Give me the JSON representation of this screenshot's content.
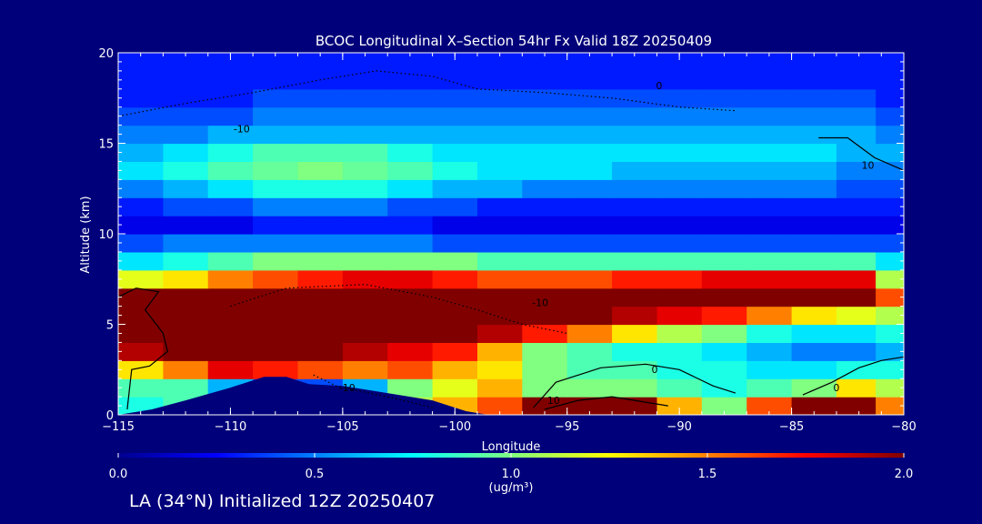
{
  "chart_data": {
    "type": "heatmap",
    "title": "BCOC Longitudinal X–Section 54hr  Fx Valid 18Z 20250409",
    "xlabel": "Longitude",
    "ylabel": "Altitude (km)",
    "xlim": [
      -115,
      -80
    ],
    "ylim": [
      0,
      20
    ],
    "x_ticks": [
      -115,
      -110,
      -105,
      -100,
      -95,
      -90,
      -85,
      -80
    ],
    "x_tick_labels": [
      "−115",
      "−110",
      "−105",
      "−100",
      "−95",
      "−90",
      "−85",
      "−80"
    ],
    "y_ticks": [
      0,
      5,
      10,
      15,
      20
    ],
    "y_tick_labels": [
      "0",
      "5",
      "10",
      "15",
      "20"
    ],
    "colorbar": {
      "min": 0.0,
      "max": 2.0,
      "ticks": [
        0.0,
        0.5,
        1.0,
        1.5,
        2.0
      ],
      "tick_labels": [
        "0.0",
        "0.5",
        "1.0",
        "1.5",
        "2.0"
      ],
      "label": "(ug/m³)",
      "colormap": [
        "#00008f",
        "#0000ff",
        "#0080ff",
        "#00ffff",
        "#80ff80",
        "#ffff00",
        "#ff8000",
        "#ff0000",
        "#800000"
      ]
    },
    "layers": [
      {
        "altitude_km": 0.5,
        "values": [
          0.8,
          0.9,
          0.6,
          0.4,
          0.4,
          0.6,
          1.1,
          1.4,
          1.6,
          2.0,
          2.0,
          2.0,
          1.4,
          1.0,
          1.6,
          2.0,
          2.0,
          1.5
        ]
      },
      {
        "altitude_km": 1.5,
        "values": [
          0.9,
          0.9,
          0.6,
          0.4,
          0.4,
          0.6,
          1.0,
          1.2,
          1.4,
          1.0,
          1.0,
          1.0,
          0.9,
          0.8,
          0.9,
          1.0,
          1.3,
          1.1
        ]
      },
      {
        "altitude_km": 2.5,
        "values": [
          1.3,
          1.5,
          1.8,
          1.7,
          1.6,
          1.5,
          1.6,
          1.4,
          1.3,
          1.0,
          0.9,
          0.9,
          0.8,
          0.8,
          0.7,
          0.7,
          0.8,
          0.8
        ]
      },
      {
        "altitude_km": 3.5,
        "values": [
          1.9,
          2.0,
          2.0,
          2.0,
          2.0,
          1.9,
          1.8,
          1.7,
          1.4,
          1.0,
          0.9,
          0.8,
          0.8,
          0.7,
          0.6,
          0.5,
          0.5,
          0.6
        ]
      },
      {
        "altitude_km": 4.5,
        "values": [
          2.0,
          2.0,
          2.0,
          2.0,
          2.0,
          2.0,
          2.0,
          2.0,
          1.9,
          1.7,
          1.5,
          1.3,
          1.1,
          1.0,
          0.8,
          0.7,
          0.7,
          0.8
        ]
      },
      {
        "altitude_km": 5.5,
        "values": [
          2.0,
          2.0,
          2.0,
          2.0,
          2.0,
          2.0,
          2.0,
          2.0,
          2.0,
          2.0,
          2.0,
          1.9,
          1.8,
          1.7,
          1.5,
          1.3,
          1.2,
          1.1
        ]
      },
      {
        "altitude_km": 6.5,
        "values": [
          2.0,
          2.0,
          2.0,
          2.0,
          2.0,
          2.0,
          2.0,
          2.0,
          2.0,
          2.0,
          2.0,
          2.0,
          2.0,
          2.0,
          2.0,
          2.0,
          2.0,
          1.6
        ]
      },
      {
        "altitude_km": 7.5,
        "values": [
          1.2,
          1.3,
          1.5,
          1.6,
          1.7,
          1.8,
          1.8,
          1.7,
          1.6,
          1.6,
          1.6,
          1.7,
          1.7,
          1.8,
          1.8,
          1.8,
          1.8,
          1.1
        ]
      },
      {
        "altitude_km": 8.5,
        "values": [
          0.7,
          0.8,
          0.9,
          1.0,
          1.0,
          1.0,
          1.0,
          1.0,
          0.9,
          0.9,
          0.9,
          0.9,
          0.9,
          0.9,
          0.9,
          0.9,
          0.9,
          0.7
        ]
      },
      {
        "altitude_km": 9.5,
        "values": [
          0.4,
          0.5,
          0.5,
          0.5,
          0.5,
          0.5,
          0.5,
          0.4,
          0.4,
          0.4,
          0.4,
          0.4,
          0.4,
          0.4,
          0.4,
          0.4,
          0.4,
          0.4
        ]
      },
      {
        "altitude_km": 10.5,
        "values": [
          0.2,
          0.2,
          0.2,
          0.3,
          0.3,
          0.3,
          0.3,
          0.2,
          0.2,
          0.2,
          0.2,
          0.2,
          0.2,
          0.2,
          0.2,
          0.2,
          0.2,
          0.2
        ]
      },
      {
        "altitude_km": 11.5,
        "values": [
          0.3,
          0.4,
          0.4,
          0.5,
          0.5,
          0.5,
          0.4,
          0.4,
          0.3,
          0.3,
          0.3,
          0.3,
          0.3,
          0.3,
          0.3,
          0.3,
          0.3,
          0.3
        ]
      },
      {
        "altitude_km": 12.5,
        "values": [
          0.5,
          0.6,
          0.7,
          0.8,
          0.8,
          0.8,
          0.7,
          0.6,
          0.6,
          0.5,
          0.5,
          0.5,
          0.5,
          0.5,
          0.5,
          0.5,
          0.4,
          0.4
        ]
      },
      {
        "altitude_km": 13.5,
        "values": [
          0.7,
          0.8,
          0.9,
          0.95,
          1.0,
          0.95,
          0.9,
          0.8,
          0.7,
          0.7,
          0.7,
          0.6,
          0.6,
          0.6,
          0.6,
          0.6,
          0.5,
          0.5
        ]
      },
      {
        "altitude_km": 14.5,
        "values": [
          0.6,
          0.7,
          0.8,
          0.9,
          0.9,
          0.9,
          0.8,
          0.7,
          0.7,
          0.7,
          0.7,
          0.7,
          0.7,
          0.7,
          0.7,
          0.7,
          0.6,
          0.6
        ]
      },
      {
        "altitude_km": 15.5,
        "values": [
          0.5,
          0.5,
          0.6,
          0.6,
          0.6,
          0.6,
          0.6,
          0.6,
          0.6,
          0.6,
          0.6,
          0.6,
          0.6,
          0.6,
          0.6,
          0.6,
          0.6,
          0.5
        ]
      },
      {
        "altitude_km": 16.5,
        "values": [
          0.4,
          0.4,
          0.4,
          0.5,
          0.5,
          0.5,
          0.5,
          0.5,
          0.5,
          0.5,
          0.5,
          0.5,
          0.5,
          0.5,
          0.5,
          0.5,
          0.5,
          0.4
        ]
      },
      {
        "altitude_km": 17.5,
        "values": [
          0.3,
          0.3,
          0.3,
          0.4,
          0.4,
          0.4,
          0.4,
          0.4,
          0.4,
          0.4,
          0.4,
          0.4,
          0.4,
          0.4,
          0.4,
          0.4,
          0.4,
          0.3
        ]
      },
      {
        "altitude_km": 18.5,
        "values": [
          0.3,
          0.3,
          0.3,
          0.3,
          0.3,
          0.3,
          0.3,
          0.3,
          0.3,
          0.3,
          0.3,
          0.3,
          0.3,
          0.3,
          0.3,
          0.3,
          0.3,
          0.3
        ]
      },
      {
        "altitude_km": 19.5,
        "values": [
          0.3,
          0.3,
          0.3,
          0.3,
          0.3,
          0.3,
          0.3,
          0.3,
          0.3,
          0.3,
          0.3,
          0.3,
          0.3,
          0.3,
          0.3,
          0.3,
          0.3,
          0.3
        ]
      }
    ],
    "layer_longitudes": [
      -114.0,
      -112.0,
      -110.0,
      -108.0,
      -106.0,
      -104.0,
      -102.0,
      -100.0,
      -98.0,
      -96.0,
      -94.0,
      -92.0,
      -90.0,
      -88.0,
      -86.0,
      -84.0,
      -82.0,
      -80.5
    ],
    "terrain": {
      "color": "#00007a",
      "points": [
        [
          -115,
          0
        ],
        [
          -113.5,
          0.3
        ],
        [
          -112,
          0.8
        ],
        [
          -110,
          1.5
        ],
        [
          -108.5,
          2.1
        ],
        [
          -107.5,
          2.1
        ],
        [
          -106.5,
          1.7
        ],
        [
          -105,
          1.6
        ],
        [
          -103,
          1.2
        ],
        [
          -101,
          0.8
        ],
        [
          -99.5,
          0.2
        ],
        [
          -98.5,
          0
        ],
        [
          -80,
          0
        ]
      ]
    },
    "contours": [
      {
        "label": "0",
        "style": "solid",
        "label_at": [
          -90.9,
          18.0
        ],
        "points": [
          [
            -114.6,
            0.3
          ],
          [
            -114.4,
            2.5
          ],
          [
            -113.6,
            2.7
          ],
          [
            -112.8,
            3.5
          ],
          [
            -113.0,
            4.5
          ],
          [
            -113.8,
            5.8
          ],
          [
            -113.2,
            6.8
          ],
          [
            -114.2,
            7.0
          ],
          [
            -115,
            6.5
          ]
        ]
      },
      {
        "label": "-10",
        "style": "dotted",
        "label_at": [
          -109.5,
          15.6
        ],
        "points": [
          [
            -115,
            16.5
          ],
          [
            -112,
            17.2
          ],
          [
            -109,
            17.8
          ],
          [
            -106,
            18.5
          ],
          [
            -103.5,
            19.0
          ],
          [
            -101,
            18.7
          ],
          [
            -99,
            18.0
          ],
          [
            -96,
            17.8
          ],
          [
            -93,
            17.5
          ],
          [
            -90,
            17.0
          ],
          [
            -87.5,
            16.8
          ]
        ]
      },
      {
        "label": "-10",
        "style": "dotted",
        "label_at": [
          -96.2,
          6.0
        ],
        "points": [
          [
            -110,
            6.0
          ],
          [
            -107.5,
            7.0
          ],
          [
            -104,
            7.2
          ],
          [
            -101,
            6.5
          ],
          [
            -99,
            5.8
          ],
          [
            -97,
            5.0
          ],
          [
            -95,
            4.5
          ]
        ]
      },
      {
        "label": "-10",
        "style": "dotted",
        "label_at": [
          -104.8,
          1.3
        ],
        "points": [
          [
            -106.3,
            2.2
          ],
          [
            -105.3,
            1.6
          ],
          [
            -103.8,
            1.2
          ],
          [
            -102.3,
            0.8
          ],
          [
            -101.0,
            0.4
          ]
        ]
      },
      {
        "label": "0",
        "style": "solid",
        "label_at": [
          -91.1,
          2.3
        ],
        "points": [
          [
            -96.5,
            0.4
          ],
          [
            -95.5,
            1.8
          ],
          [
            -93.5,
            2.6
          ],
          [
            -91.5,
            2.8
          ],
          [
            -90,
            2.5
          ],
          [
            -88.5,
            1.6
          ],
          [
            -87.5,
            1.2
          ]
        ]
      },
      {
        "label": "10",
        "style": "solid",
        "label_at": [
          -95.6,
          0.6
        ],
        "points": [
          [
            -96.0,
            0.3
          ],
          [
            -94.5,
            0.8
          ],
          [
            -93,
            1.0
          ],
          [
            -91.5,
            0.7
          ],
          [
            -90.5,
            0.5
          ]
        ]
      },
      {
        "label": "0",
        "style": "solid",
        "label_at": [
          -83.0,
          1.3
        ],
        "points": [
          [
            -84.5,
            1.1
          ],
          [
            -83.2,
            1.8
          ],
          [
            -82.0,
            2.6
          ],
          [
            -81.0,
            3.0
          ],
          [
            -80.0,
            3.2
          ]
        ]
      },
      {
        "label": "10",
        "style": "solid",
        "label_at": [
          -81.6,
          13.6
        ],
        "points": [
          [
            -83.8,
            15.3
          ],
          [
            -82.5,
            15.3
          ],
          [
            -81.3,
            14.2
          ],
          [
            -80.0,
            13.5
          ]
        ]
      }
    ]
  },
  "bottom_label": "LA (34°N) Initialized 12Z 20250407"
}
